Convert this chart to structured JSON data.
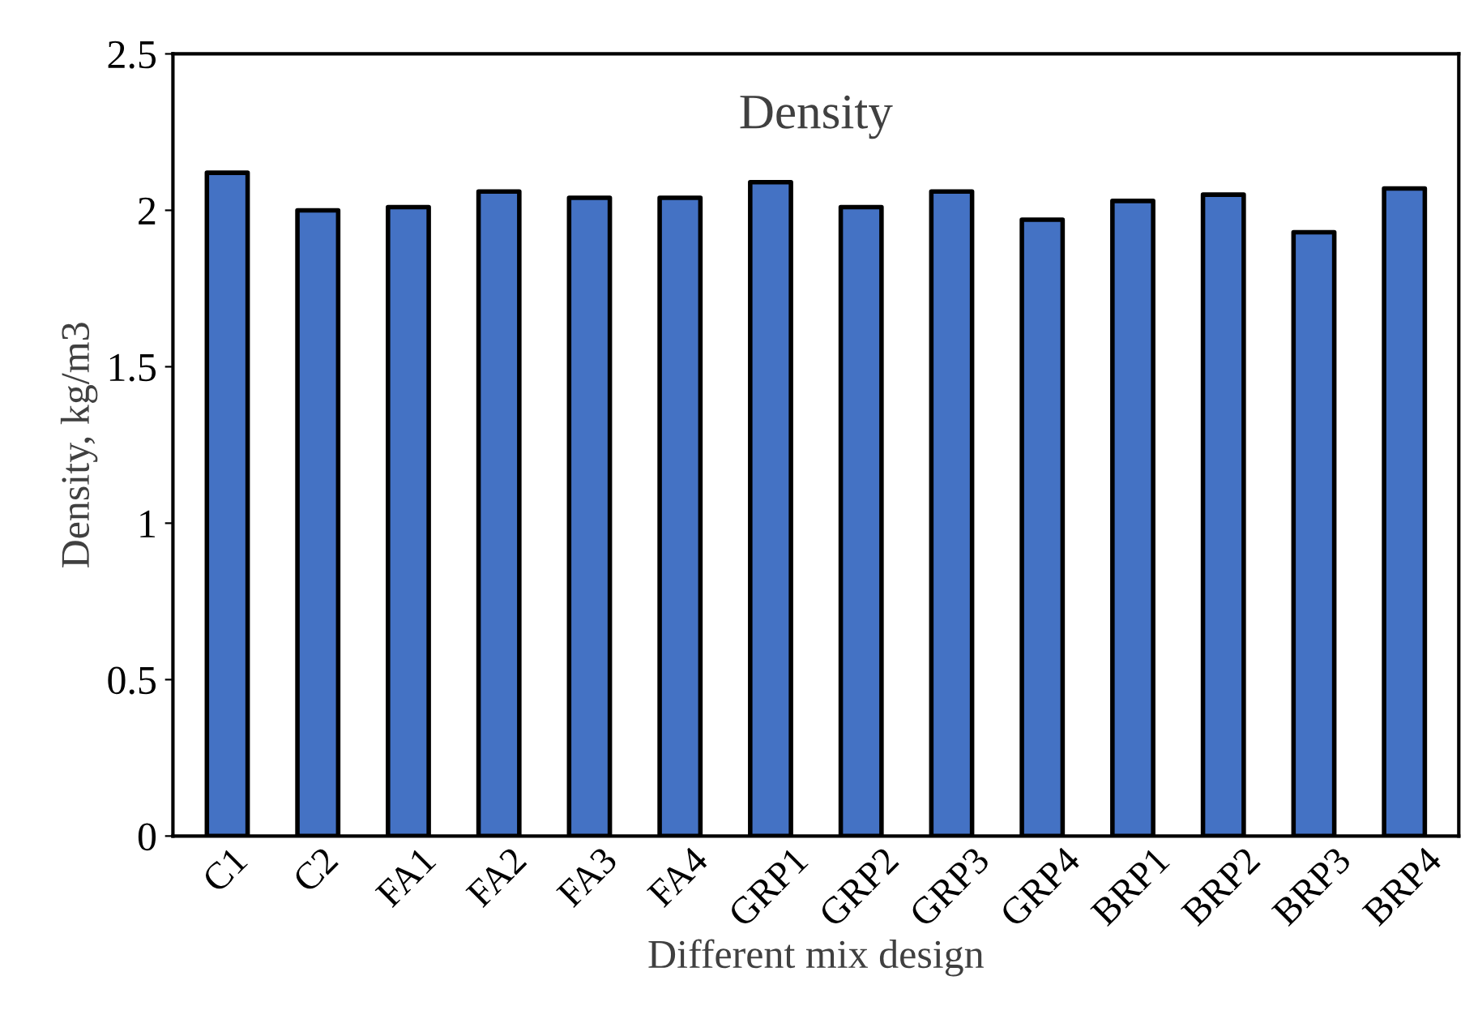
{
  "chart_data": {
    "type": "bar",
    "title": "Density",
    "xlabel": "Different mix design",
    "ylabel": "Density, kg/m3",
    "categories": [
      "C1",
      "C2",
      "FA1",
      "FA2",
      "FA3",
      "FA4",
      "GRP1",
      "GRP2",
      "GRP3",
      "GRP4",
      "BRP1",
      "BRP2",
      "BRP3",
      "BRP4"
    ],
    "values": [
      2.12,
      2.0,
      2.01,
      2.06,
      2.04,
      2.04,
      2.09,
      2.01,
      2.06,
      1.97,
      2.03,
      2.05,
      1.93,
      2.07
    ],
    "color": "#4472c4",
    "ylim": [
      0,
      2.5
    ],
    "yticks": [
      0,
      {
        "value": 0.5,
        "label": "0.5"
      },
      1,
      {
        "value": 1.5,
        "label": "1.5"
      },
      2,
      {
        "value": 2.5,
        "label": "2.5"
      }
    ],
    "grid": false
  }
}
